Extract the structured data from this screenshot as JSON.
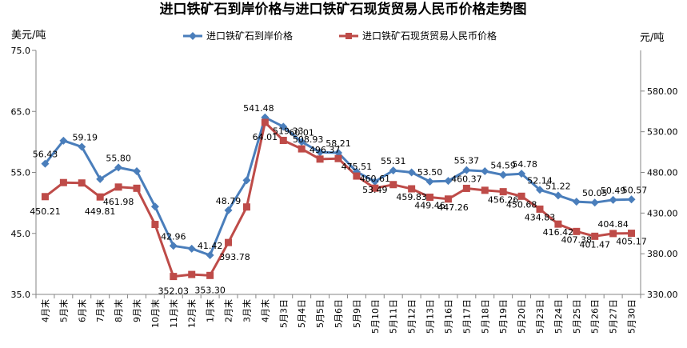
{
  "chart_data": {
    "type": "line",
    "title": "进口铁矿石到岸价格与进口铁矿石现货贸易人民币价格走势图",
    "left_unit": "美元/吨",
    "right_unit": "元/吨",
    "categories": [
      "4月末",
      "5月末",
      "6月末",
      "7月末",
      "8月末",
      "9月末",
      "10月末",
      "11月末",
      "12月末",
      "1月末",
      "2月末",
      "3月末",
      "4月末",
      "5月3日",
      "5月4日",
      "5月5日",
      "5月6日",
      "5月9日",
      "5月10日",
      "5月11日",
      "5月12日",
      "5月13日",
      "5月16日",
      "5月17日",
      "5月18日",
      "5月19日",
      "5月20日",
      "5月23日",
      "5月24日",
      "5月25日",
      "5月26日",
      "5月27日",
      "5月30日"
    ],
    "left_axis": {
      "min": 35,
      "max": 75,
      "ticks": [
        "35.0",
        "45.0",
        "55.0",
        "65.0",
        "75.0"
      ]
    },
    "right_axis": {
      "min": 330,
      "max": 630,
      "ticks": [
        "330.00",
        "380.00",
        "430.00",
        "480.00",
        "530.00",
        "580.00"
      ]
    },
    "series": [
      {
        "name": "进口铁矿石到岸价格",
        "axis": "left",
        "color": "#4a7ebb",
        "marker": "diamond",
        "values": [
          56.43,
          60.2,
          59.19,
          53.9,
          55.8,
          55.2,
          49.4,
          42.96,
          42.5,
          41.42,
          48.79,
          53.7,
          64.01,
          62.5,
          60.01,
          58.3,
          58.21,
          55.1,
          53.49,
          55.31,
          55.0,
          53.5,
          53.6,
          55.37,
          55.2,
          54.59,
          54.78,
          52.14,
          51.22,
          50.2,
          50.05,
          50.49,
          50.57
        ],
        "labels": [
          "56.43",
          "",
          "59.19",
          "",
          "55.80",
          "",
          "",
          "42.96",
          "",
          "41.42",
          "48.79",
          "",
          "64.01",
          "",
          "60.01",
          "",
          "58.21",
          "",
          "53.49",
          "55.31",
          "",
          "53.50",
          "",
          "55.37",
          "",
          "54.59",
          "54.78",
          "52.14",
          "51.22",
          "",
          "50.05",
          "50.49",
          "50.57"
        ]
      },
      {
        "name": "进口铁矿石现货贸易人民币价格",
        "axis": "right",
        "color": "#be4b48",
        "marker": "square",
        "values": [
          450.21,
          467.5,
          467.0,
          449.81,
          461.98,
          460.5,
          416.0,
          352.03,
          354.5,
          353.3,
          393.78,
          437.5,
          541.48,
          519.33,
          508.93,
          496.37,
          497.0,
          475.51,
          460.61,
          465.0,
          459.83,
          449.46,
          447.26,
          460.37,
          458.0,
          456.26,
          450.68,
          434.83,
          416.42,
          407.38,
          401.47,
          404.84,
          405.17
        ],
        "labels": [
          "450.21",
          "",
          "",
          "449.81",
          "461.98",
          "",
          "",
          "352.03",
          "",
          "353.30",
          "393.78",
          "",
          "541.48",
          "519.33",
          "508.93",
          "496.37",
          "",
          "475.51",
          "460.61",
          "",
          "459.83",
          "449.46",
          "447.26",
          "460.37",
          "",
          "456.26",
          "450.68",
          "434.83",
          "416.42",
          "407.38",
          "401.47",
          "404.84",
          "405.17"
        ]
      }
    ],
    "grid": false,
    "legend_position": "top"
  }
}
